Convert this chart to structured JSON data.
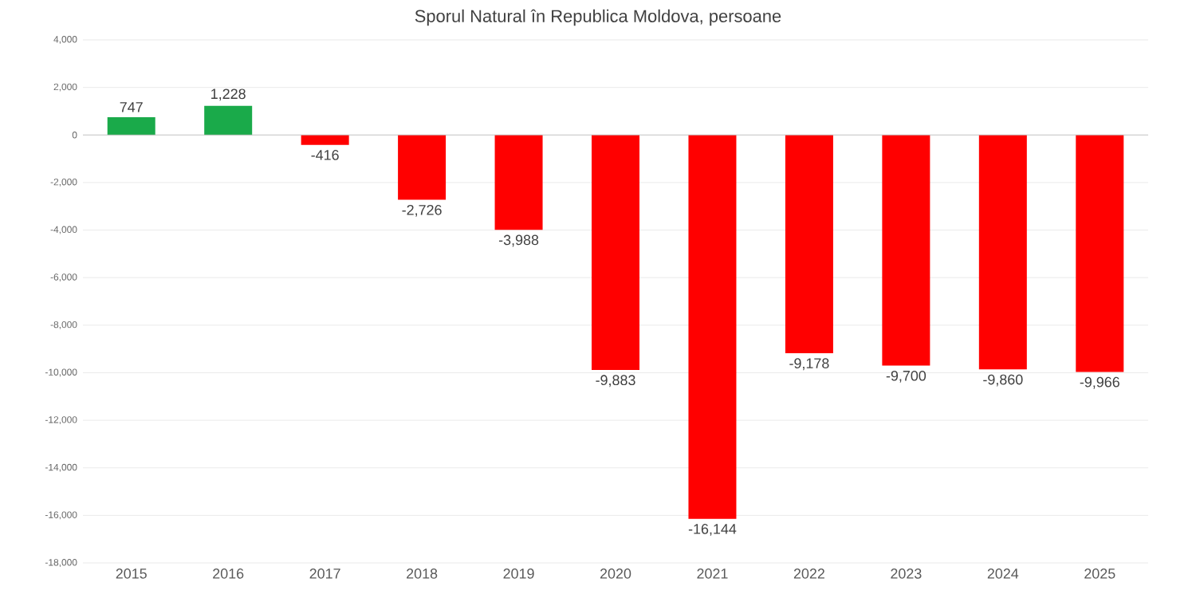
{
  "chart_data": {
    "type": "bar",
    "title": "Sporul Natural în Republica Moldova, persoane",
    "categories": [
      "2015",
      "2016",
      "2017",
      "2018",
      "2019",
      "2020",
      "2021",
      "2022",
      "2023",
      "2024",
      "2025"
    ],
    "values": [
      747,
      1228,
      -416,
      -2726,
      -3988,
      -9883,
      -16144,
      -9178,
      -9700,
      -9860,
      -9966
    ],
    "value_labels": [
      "747",
      "1,228",
      "-416",
      "-2,726",
      "-3,988",
      "-9,883",
      "-16,144",
      "-9,178",
      "-9,700",
      "-9,860",
      "-9,966"
    ],
    "colors": [
      "#1aaa4a",
      "#1aaa4a",
      "#ff0000",
      "#ff0000",
      "#ff0000",
      "#ff0000",
      "#ff0000",
      "#ff0000",
      "#ff0000",
      "#ff0000",
      "#ff0000"
    ],
    "ylim": [
      -18000,
      4000
    ],
    "yticks": [
      {
        "value": 4000,
        "label": "4,000"
      },
      {
        "value": 2000,
        "label": "2,000"
      },
      0,
      {
        "value": -2000,
        "label": "-2,000"
      },
      {
        "value": -4000,
        "label": "-4,000"
      },
      {
        "value": -6000,
        "label": "-6,000"
      },
      {
        "value": -8000,
        "label": "-8,000"
      },
      {
        "value": -10000,
        "label": "-10,000"
      },
      {
        "value": -12000,
        "label": "-12,000"
      },
      {
        "value": -14000,
        "label": "-14,000"
      },
      {
        "value": -16000,
        "label": "-16,000"
      },
      {
        "value": -18000,
        "label": "-18,000"
      }
    ],
    "grid": "y"
  }
}
